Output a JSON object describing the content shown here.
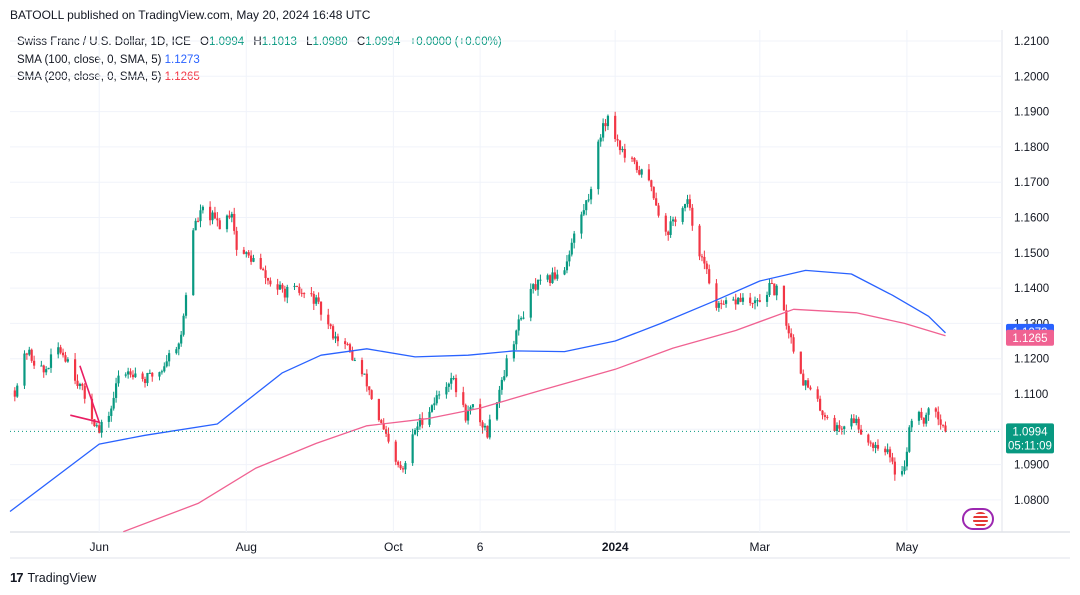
{
  "header": {
    "publisher_line": "BATOOLL published on TradingView.com, May 20, 2024 16:48 UTC"
  },
  "legend": {
    "symbol": "Swiss Franc / U.S. Dollar, 1D, ICE",
    "o_label": "O",
    "o_value": "1.0994",
    "h_label": "H",
    "h_value": "1.1013",
    "l_label": "L",
    "l_value": "1.0980",
    "c_label": "C",
    "c_value": "1.0994",
    "change": "+0.0000 (+0.00%)",
    "sma100_label": "SMA (100, close, 0, SMA, 5)",
    "sma100_value": "1.1273",
    "sma200_label": "SMA (200, close, 0, SMA, 5)",
    "sma200_value": "1.1265"
  },
  "footer": {
    "brand": "TradingView"
  },
  "colors": {
    "up": "#089981",
    "down": "#f23645",
    "sma100": "#2962ff",
    "sma200": "#f06292",
    "drawing": "#e91e63"
  },
  "chart_data": {
    "type": "candlestick",
    "title": "Swiss Franc / U.S. Dollar, 1D, ICE",
    "y_ticks": [
      "1.2100",
      "1.2000",
      "1.1900",
      "1.1800",
      "1.1700",
      "1.1600",
      "1.1500",
      "1.1400",
      "1.1300",
      "1.1200",
      "1.1100",
      "1.1000",
      "1.0900",
      "1.0800"
    ],
    "ylim": [
      1.071,
      1.22
    ],
    "x_ticks": [
      "Jun",
      "Aug",
      "Oct",
      "6",
      "2024",
      "Mar",
      "May"
    ],
    "x_range": [
      "2023-04-25",
      "2024-05-28"
    ],
    "x_tick_dates": [
      "2023-06-01",
      "2023-08-01",
      "2023-10-01",
      "2023-11-06",
      "2024-01-01",
      "2024-03-01",
      "2024-05-01"
    ],
    "last_price": "1.0994",
    "countdown": "05:11:09",
    "sma100_last": "1.1273",
    "sma200_last": "1.1265",
    "grid": true,
    "ohlc_path": [
      [
        "2023-04-27",
        1.111
      ],
      [
        "2023-05-02",
        1.122
      ],
      [
        "2023-05-09",
        1.116
      ],
      [
        "2023-05-15",
        1.123
      ],
      [
        "2023-05-19",
        1.12
      ],
      [
        "2023-05-26",
        1.109
      ],
      [
        "2023-06-01",
        1.099
      ],
      [
        "2023-06-06",
        1.106
      ],
      [
        "2023-06-09",
        1.115
      ],
      [
        "2023-06-14",
        1.117
      ],
      [
        "2023-06-20",
        1.114
      ],
      [
        "2023-06-27",
        1.117
      ],
      [
        "2023-06-29",
        1.12
      ],
      [
        "2023-07-05",
        1.126
      ],
      [
        "2023-07-10",
        1.157
      ],
      [
        "2023-07-14",
        1.162
      ],
      [
        "2023-07-21",
        1.158
      ],
      [
        "2023-07-26",
        1.162
      ],
      [
        "2023-07-28",
        1.151
      ],
      [
        "2023-08-04",
        1.148
      ],
      [
        "2023-08-10",
        1.142
      ],
      [
        "2023-08-16",
        1.139
      ],
      [
        "2023-08-22",
        1.139
      ],
      [
        "2023-08-29",
        1.137
      ],
      [
        "2023-09-05",
        1.128
      ],
      [
        "2023-09-12",
        1.123
      ],
      [
        "2023-09-20",
        1.113
      ],
      [
        "2023-09-25",
        1.103
      ],
      [
        "2023-10-02",
        1.09
      ],
      [
        "2023-10-05",
        1.088
      ],
      [
        "2023-10-10",
        1.1
      ],
      [
        "2023-10-18",
        1.108
      ],
      [
        "2023-10-25",
        1.115
      ],
      [
        "2023-10-31",
        1.104
      ],
      [
        "2023-11-03",
        1.106
      ],
      [
        "2023-11-09",
        1.099
      ],
      [
        "2023-11-14",
        1.112
      ],
      [
        "2023-11-21",
        1.128
      ],
      [
        "2023-11-28",
        1.14
      ],
      [
        "2023-12-04",
        1.142
      ],
      [
        "2023-12-11",
        1.146
      ],
      [
        "2023-12-15",
        1.155
      ],
      [
        "2023-12-21",
        1.166
      ],
      [
        "2023-12-27",
        1.187
      ],
      [
        "2023-12-29",
        1.188
      ],
      [
        "2024-01-05",
        1.177
      ],
      [
        "2024-01-10",
        1.174
      ],
      [
        "2024-01-16",
        1.169
      ],
      [
        "2024-01-22",
        1.155
      ],
      [
        "2024-01-25",
        1.159
      ],
      [
        "2024-01-31",
        1.164
      ],
      [
        "2024-02-06",
        1.148
      ],
      [
        "2024-02-13",
        1.134
      ],
      [
        "2024-02-16",
        1.135
      ],
      [
        "2024-02-22",
        1.137
      ],
      [
        "2024-02-28",
        1.135
      ],
      [
        "2024-03-05",
        1.14
      ],
      [
        "2024-03-08",
        1.139
      ],
      [
        "2024-03-13",
        1.128
      ],
      [
        "2024-03-19",
        1.114
      ],
      [
        "2024-03-26",
        1.106
      ],
      [
        "2024-04-02",
        1.1
      ],
      [
        "2024-04-09",
        1.103
      ],
      [
        "2024-04-16",
        1.096
      ],
      [
        "2024-04-22",
        1.095
      ],
      [
        "2024-04-26",
        1.088
      ],
      [
        "2024-04-30",
        1.09
      ],
      [
        "2024-05-03",
        1.104
      ],
      [
        "2024-05-08",
        1.103
      ],
      [
        "2024-05-13",
        1.106
      ],
      [
        "2024-05-17",
        1.0994
      ]
    ],
    "sma100_path": [
      [
        "2023-04-25",
        1.0767
      ],
      [
        "2023-06-01",
        1.0958
      ],
      [
        "2023-06-20",
        1.0983
      ],
      [
        "2023-07-20",
        1.1015
      ],
      [
        "2023-08-01",
        1.108
      ],
      [
        "2023-08-16",
        1.116
      ],
      [
        "2023-09-01",
        1.121
      ],
      [
        "2023-09-20",
        1.1228
      ],
      [
        "2023-10-10",
        1.1205
      ],
      [
        "2023-11-01",
        1.121
      ],
      [
        "2023-11-20",
        1.1222
      ],
      [
        "2023-12-11",
        1.122
      ],
      [
        "2024-01-01",
        1.125
      ],
      [
        "2024-01-20",
        1.13
      ],
      [
        "2024-02-10",
        1.136
      ],
      [
        "2024-03-01",
        1.142
      ],
      [
        "2024-03-20",
        1.145
      ],
      [
        "2024-04-08",
        1.144
      ],
      [
        "2024-04-25",
        1.138
      ],
      [
        "2024-05-10",
        1.132
      ],
      [
        "2024-05-17",
        1.1273
      ]
    ],
    "sma200_path": [
      [
        "2023-06-11",
        1.071
      ],
      [
        "2023-07-12",
        1.079
      ],
      [
        "2023-08-05",
        1.089
      ],
      [
        "2023-08-30",
        1.096
      ],
      [
        "2023-09-20",
        1.101
      ],
      [
        "2023-10-15",
        1.103
      ],
      [
        "2023-11-06",
        1.106
      ],
      [
        "2023-12-01",
        1.111
      ],
      [
        "2024-01-01",
        1.117
      ],
      [
        "2024-01-25",
        1.123
      ],
      [
        "2024-02-20",
        1.128
      ],
      [
        "2024-03-15",
        1.134
      ],
      [
        "2024-04-10",
        1.133
      ],
      [
        "2024-04-30",
        1.13
      ],
      [
        "2024-05-17",
        1.1265
      ]
    ],
    "drawing": [
      [
        "2023-05-24",
        1.118
      ],
      [
        "2023-06-01",
        1.102
      ],
      [
        "2023-05-20",
        1.104
      ]
    ]
  }
}
